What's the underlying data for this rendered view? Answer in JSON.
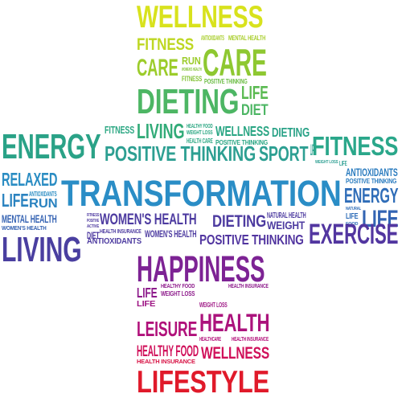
{
  "word_cloud": {
    "shape": "cross",
    "palette": [
      "#e0e61c",
      "#9fd227",
      "#4fbf57",
      "#2eaea0",
      "#2a90c8",
      "#3a5aa8",
      "#5b3a9c",
      "#8a1f8f",
      "#c01070",
      "#e0102a"
    ],
    "words": [
      {
        "text": "WELLNESS",
        "color": "#d8e21d"
      },
      {
        "text": "FITNESS",
        "color": "#bed722"
      },
      {
        "text": "ANTIOXIDANTS",
        "color": "#a8ce2a"
      },
      {
        "text": "MENTAL HEALTH",
        "color": "#a8ce2a"
      },
      {
        "text": "CARE",
        "color": "#9ccc2b"
      },
      {
        "text": "RUN",
        "color": "#9ccc2b"
      },
      {
        "text": "WOMEN'S HEALTH",
        "color": "#86c43a"
      },
      {
        "text": "FITNESS",
        "color": "#86c43a"
      },
      {
        "text": "CARE",
        "color": "#8ec831"
      },
      {
        "text": "POSITIVE THINKING",
        "color": "#6cbd45"
      },
      {
        "text": "DIETING",
        "color": "#4db664"
      },
      {
        "text": "LIFE",
        "color": "#5bba52"
      },
      {
        "text": "DIET",
        "color": "#4db664"
      },
      {
        "text": "FITNESS",
        "color": "#2ea884"
      },
      {
        "text": "LIVING",
        "color": "#32ab78"
      },
      {
        "text": "HEALTHY FOOD",
        "color": "#2ea884"
      },
      {
        "text": "WEIGHT LOSS",
        "color": "#2ea884"
      },
      {
        "text": "HEALTH CARE",
        "color": "#2ea884"
      },
      {
        "text": "WELLNESS",
        "color": "#2aa684"
      },
      {
        "text": "POSITIVE THINKING",
        "color": "#2aa684"
      },
      {
        "text": "DIETING",
        "color": "#2aa287"
      },
      {
        "text": "ENERGY",
        "color": "#2aa287"
      },
      {
        "text": "POSITIVE THINKING",
        "color": "#2d9f92"
      },
      {
        "text": "SPORT",
        "color": "#2d9f92"
      },
      {
        "text": "LIFE",
        "color": "#2d9f92"
      },
      {
        "text": "WEIGHT LOSS",
        "color": "#2d9f92"
      },
      {
        "text": "LIFE",
        "color": "#2d9f92"
      },
      {
        "text": "FITNESS",
        "color": "#2aa78a"
      },
      {
        "text": "RELAXED",
        "color": "#2b8dc3"
      },
      {
        "text": "ANTIOXIDANTS",
        "color": "#2b8dc3"
      },
      {
        "text": "LIFE",
        "color": "#2b83c0"
      },
      {
        "text": "RUN",
        "color": "#2b83c0"
      },
      {
        "text": "TRANSFORMATION",
        "color": "#2a8dc6"
      },
      {
        "text": "ANTIOXIDANTS",
        "color": "#2b7cbf"
      },
      {
        "text": "POSITIVE THINKING",
        "color": "#2b7cbf"
      },
      {
        "text": "ENERGY",
        "color": "#2f6db8"
      },
      {
        "text": "NATURAL",
        "color": "#2f6db8"
      },
      {
        "text": "LIFE",
        "color": "#2f6db8"
      },
      {
        "text": "FOOD",
        "color": "#2f6db8"
      },
      {
        "text": "LIFE",
        "color": "#3364b3"
      },
      {
        "text": "MENTAL HEALTH",
        "color": "#3462b2"
      },
      {
        "text": "WOMEN'S HEALTH",
        "color": "#3462b2"
      },
      {
        "text": "LIVING",
        "color": "#4a3fa0"
      },
      {
        "text": "FITNESS",
        "color": "#4e3aa0"
      },
      {
        "text": "POSITIVE",
        "color": "#4e3aa0"
      },
      {
        "text": "ACTIVE",
        "color": "#4e3aa0"
      },
      {
        "text": "DIET",
        "color": "#4e3aa0"
      },
      {
        "text": "WOMEN'S HEALTH",
        "color": "#4d3ba0"
      },
      {
        "text": "HEALTH INSURANCE",
        "color": "#4d3ba0"
      },
      {
        "text": "ANTIOXIDANTS",
        "color": "#4d3ba0"
      },
      {
        "text": "WOMEN'S HEALTH",
        "color": "#4d3ba0"
      },
      {
        "text": "DIETING",
        "color": "#4d3ba0"
      },
      {
        "text": "NATURAL HEALTH",
        "color": "#4d3ba0"
      },
      {
        "text": "WEIGHT",
        "color": "#4d3ba0"
      },
      {
        "text": "POSITIVE THINKING",
        "color": "#5236a0"
      },
      {
        "text": "EXERCISE",
        "color": "#5236a0"
      },
      {
        "text": "HAPPINESS",
        "color": "#7d2394"
      },
      {
        "text": "LIFE",
        "color": "#8e1c8c"
      },
      {
        "text": "HEALTHY FOOD",
        "color": "#8e1c8c"
      },
      {
        "text": "WEIGHT LOSS",
        "color": "#8e1c8c"
      },
      {
        "text": "HEALTH INSURANCE",
        "color": "#8e1c8c"
      },
      {
        "text": "LIFE",
        "color": "#9e1684"
      },
      {
        "text": "WEIGHT LOSS",
        "color": "#9e1684"
      },
      {
        "text": "HEALTH",
        "color": "#ab137c"
      },
      {
        "text": "LEISURE",
        "color": "#b0107a"
      },
      {
        "text": "HEALTHCARE",
        "color": "#b3107a"
      },
      {
        "text": "HEALTH INSURANCE",
        "color": "#b3107a"
      },
      {
        "text": "HEALTHY FOOD",
        "color": "#d0105a"
      },
      {
        "text": "WELLNESS",
        "color": "#d0105a"
      },
      {
        "text": "HEALTH INSURANCE",
        "color": "#d81446"
      },
      {
        "text": "LIFESTYLE",
        "color": "#e01a2a"
      }
    ]
  }
}
